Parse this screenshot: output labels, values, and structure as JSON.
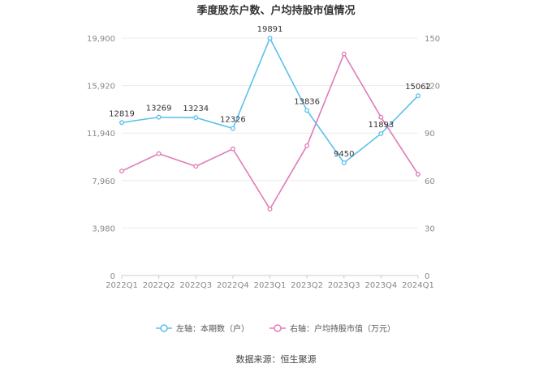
{
  "chart_data": {
    "type": "line",
    "title": "季度股东户数、户均持股市值情况",
    "categories": [
      "2022Q1",
      "2022Q2",
      "2022Q3",
      "2022Q4",
      "2023Q1",
      "2023Q2",
      "2023Q3",
      "2023Q4",
      "2024Q1"
    ],
    "left_axis": {
      "ticks": [
        "0",
        "3,980",
        "7,960",
        "11,940",
        "15,920",
        "19,900"
      ],
      "ylim": [
        0,
        19900
      ]
    },
    "right_axis": {
      "ticks": [
        "0",
        "30",
        "60",
        "90",
        "120",
        "150"
      ],
      "ylim": [
        0,
        150
      ]
    },
    "series": [
      {
        "name": "左轴：本期数（户）",
        "axis": "left",
        "color": "#5bc0eb",
        "values": [
          12819,
          13269,
          13234,
          12326,
          19891,
          13836,
          9450,
          11893,
          15062
        ],
        "labels": [
          "12819",
          "13269",
          "13234",
          "12326",
          "19891",
          "13836",
          "9450",
          "11893",
          "15062"
        ]
      },
      {
        "name": "右轴：户均持股市值（万元）",
        "axis": "right",
        "color": "#e07bb7",
        "values": [
          66,
          77,
          69,
          80,
          42,
          82,
          140,
          100,
          64
        ]
      }
    ],
    "grid": true,
    "legend_position": "bottom"
  },
  "source": "数据来源：恒生聚源"
}
